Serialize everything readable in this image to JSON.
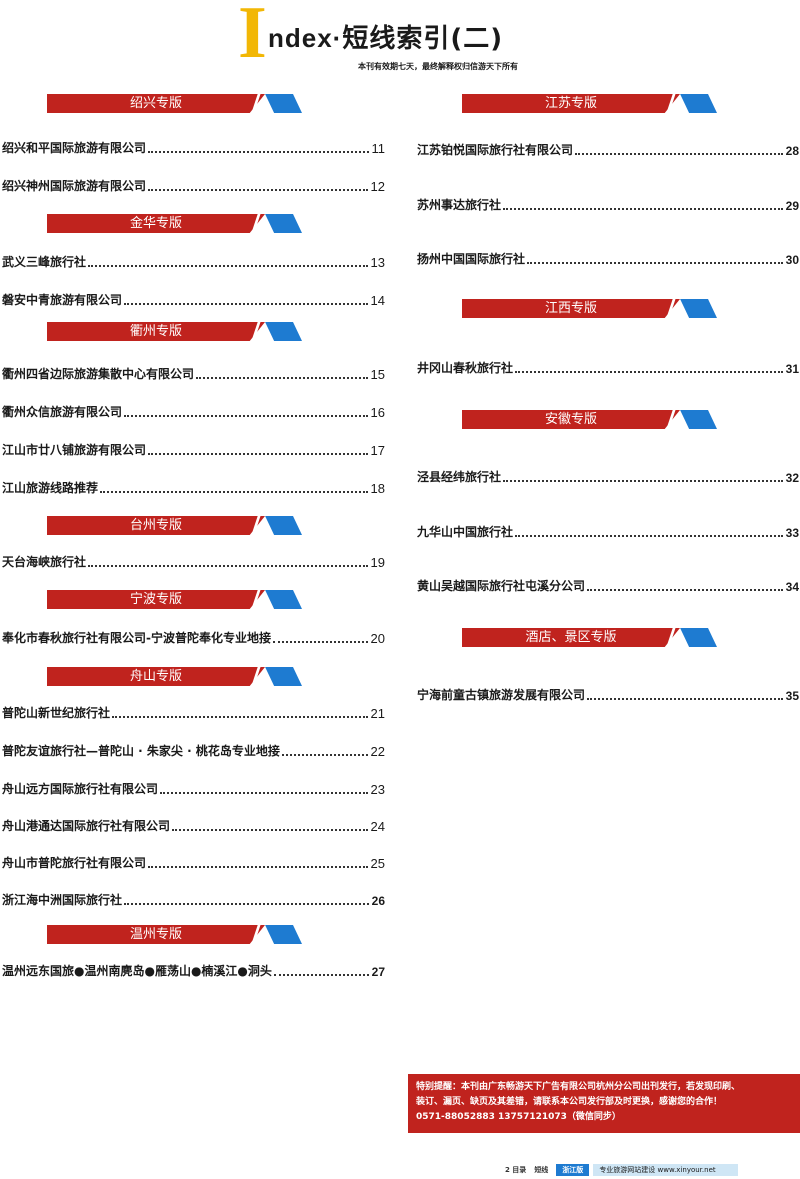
{
  "header": {
    "index_initial": "I",
    "index_rest": "ndex·",
    "title_cn": "短线索引(二)",
    "subtitle": "本刊有效期七天，最终解释权归信游天下所有"
  },
  "left_sections": [
    {
      "title": "绍兴专版",
      "entries": [
        {
          "name": "绍兴和平国际旅游有限公司",
          "page": "11"
        },
        {
          "name": "绍兴神州国际旅游有限公司",
          "page": "12"
        }
      ]
    },
    {
      "title": "金华专版",
      "entries": [
        {
          "name": "武义三峰旅行社",
          "page": "13"
        },
        {
          "name": "磐安中青旅游有限公司",
          "page": "14"
        }
      ]
    },
    {
      "title": "衢州专版",
      "entries": [
        {
          "name": "衢州四省边际旅游集散中心有限公司",
          "page": "15"
        },
        {
          "name": "衢州众信旅游有限公司",
          "page": "16"
        },
        {
          "name": "江山市廿八铺旅游有限公司",
          "page": "17"
        },
        {
          "name": "江山旅游线路推荐",
          "page": "18"
        }
      ]
    },
    {
      "title": "台州专版",
      "entries": [
        {
          "name": "天台海峡旅行社",
          "page": "19"
        }
      ]
    },
    {
      "title": "宁波专版",
      "entries": [
        {
          "name": "奉化市春秋旅行社有限公司-宁波普陀奉化专业地接",
          "page": "20"
        }
      ]
    },
    {
      "title": "舟山专版",
      "entries": [
        {
          "name": "普陀山新世纪旅行社",
          "page": "21"
        },
        {
          "name": "普陀友谊旅行社—普陀山 · 朱家尖 · 桃花岛专业地接",
          "page": "22"
        },
        {
          "name": "舟山远方国际旅行社有限公司",
          "page": "23"
        },
        {
          "name": "舟山港通达国际旅行社有限公司",
          "page": "24"
        },
        {
          "name": "舟山市普陀旅行社有限公司",
          "page": "25"
        },
        {
          "name": "浙江海中洲国际旅行社",
          "page": "26"
        }
      ]
    },
    {
      "title": "温州专版",
      "entries": [
        {
          "name": "温州远东国旅●温州南麂岛●雁荡山●楠溪江●洞头",
          "page": "27"
        }
      ]
    }
  ],
  "right_sections": [
    {
      "title": "江苏专版",
      "entries": [
        {
          "name": "江苏铂悦国际旅行社有限公司",
          "page": "28"
        },
        {
          "name": "苏州事达旅行社",
          "page": "29"
        },
        {
          "name": "扬州中国国际旅行社",
          "page": "30"
        }
      ]
    },
    {
      "title": "江西专版",
      "entries": [
        {
          "name": "井冈山春秋旅行社",
          "page": "31"
        }
      ]
    },
    {
      "title": "安徽专版",
      "entries": [
        {
          "name": "泾县经纬旅行社",
          "page": "32"
        },
        {
          "name": "九华山中国旅行社",
          "page": "33"
        },
        {
          "name": "黄山吴越国际旅行社屯溪分公司",
          "page": "34"
        }
      ]
    },
    {
      "title": "酒店、景区专版",
      "entries": [
        {
          "name": "宁海前童古镇旅游发展有限公司",
          "page": "35"
        }
      ]
    }
  ],
  "notice": {
    "line1": "特别提醒：本刊由广东畅游天下广告有限公司杭州分公司出刊发行，若发现印刷、",
    "line2": "装订、漏页、缺页及其差错，请联系本公司发行部及时更换，感谢您的合作！",
    "line3": "0571-88052883 13757121073（微信同步）"
  },
  "footer": {
    "page_label": "2 目录",
    "section_label": "短线",
    "badge": "浙江版",
    "site_text": "专业旅游网站建设 www.xinyour.net"
  },
  "colors": {
    "banner_red": "#c0231e",
    "banner_blue": "#1e7bd1",
    "index_yellow": "#f2b705"
  }
}
